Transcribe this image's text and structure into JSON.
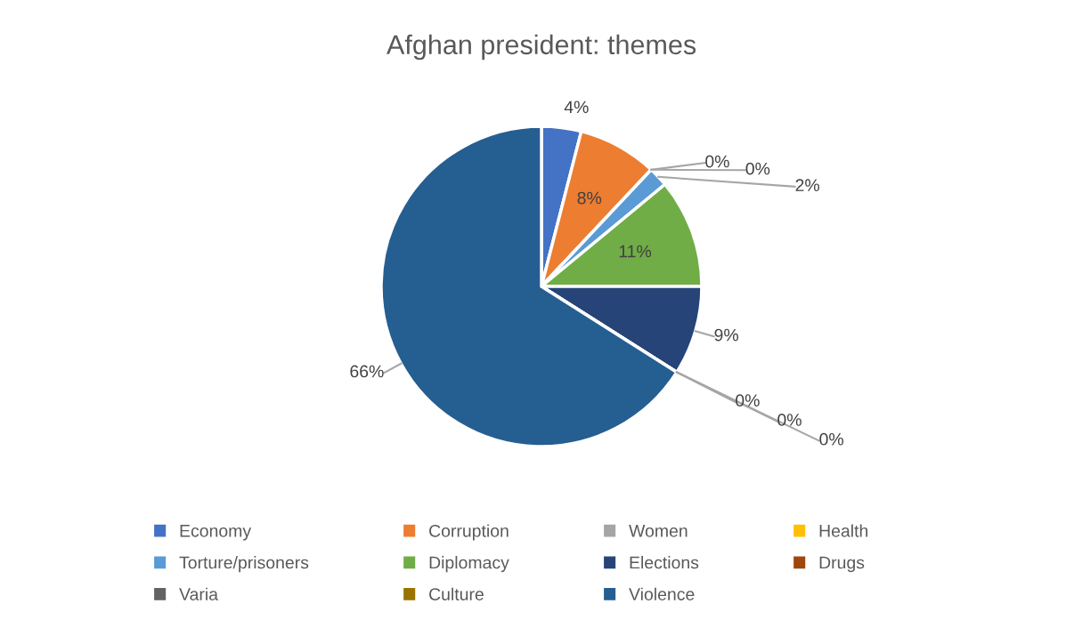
{
  "chart_data": {
    "type": "pie",
    "title": "Afghan president: themes",
    "categories": [
      "Economy",
      "Corruption",
      "Women",
      "Health",
      "Torture/prisoners",
      "Diplomacy",
      "Elections",
      "Drugs",
      "Varia",
      "Culture",
      "Violence"
    ],
    "values": [
      4,
      8,
      0,
      0,
      2,
      11,
      9,
      0,
      0,
      0,
      66
    ],
    "value_labels": [
      "4%",
      "8%",
      "0%",
      "0%",
      "2%",
      "11%",
      "9%",
      "0%",
      "0%",
      "0%",
      "66%"
    ],
    "colors": [
      "#4472c4",
      "#ed7d31",
      "#a5a5a5",
      "#ffc000",
      "#5b9bd5",
      "#70ad47",
      "#264478",
      "#9e480e",
      "#636363",
      "#997300",
      "#255e91"
    ],
    "legend": "bottom"
  }
}
